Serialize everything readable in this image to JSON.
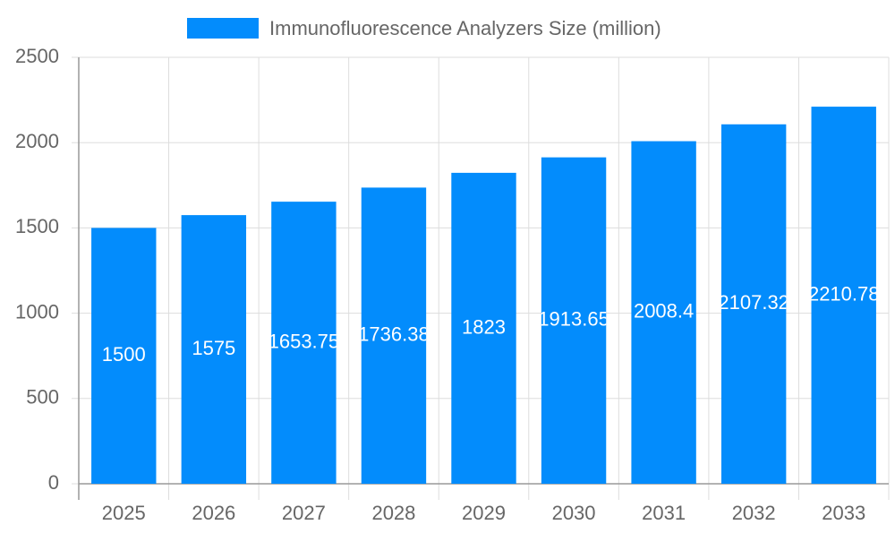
{
  "chart_data": {
    "type": "bar",
    "legend": "Immunofluorescence Analyzers Size (million)",
    "categories": [
      "2025",
      "2026",
      "2027",
      "2028",
      "2029",
      "2030",
      "2031",
      "2032",
      "2033"
    ],
    "values": [
      1500,
      1575,
      1653.75,
      1736.38,
      1823,
      1913.65,
      2008.4,
      2107.32,
      2210.78
    ],
    "color": "#038cfc",
    "ylim": [
      0,
      2500
    ],
    "yticks": [
      0,
      500,
      1000,
      1500,
      2000,
      2500
    ],
    "grid": true
  }
}
